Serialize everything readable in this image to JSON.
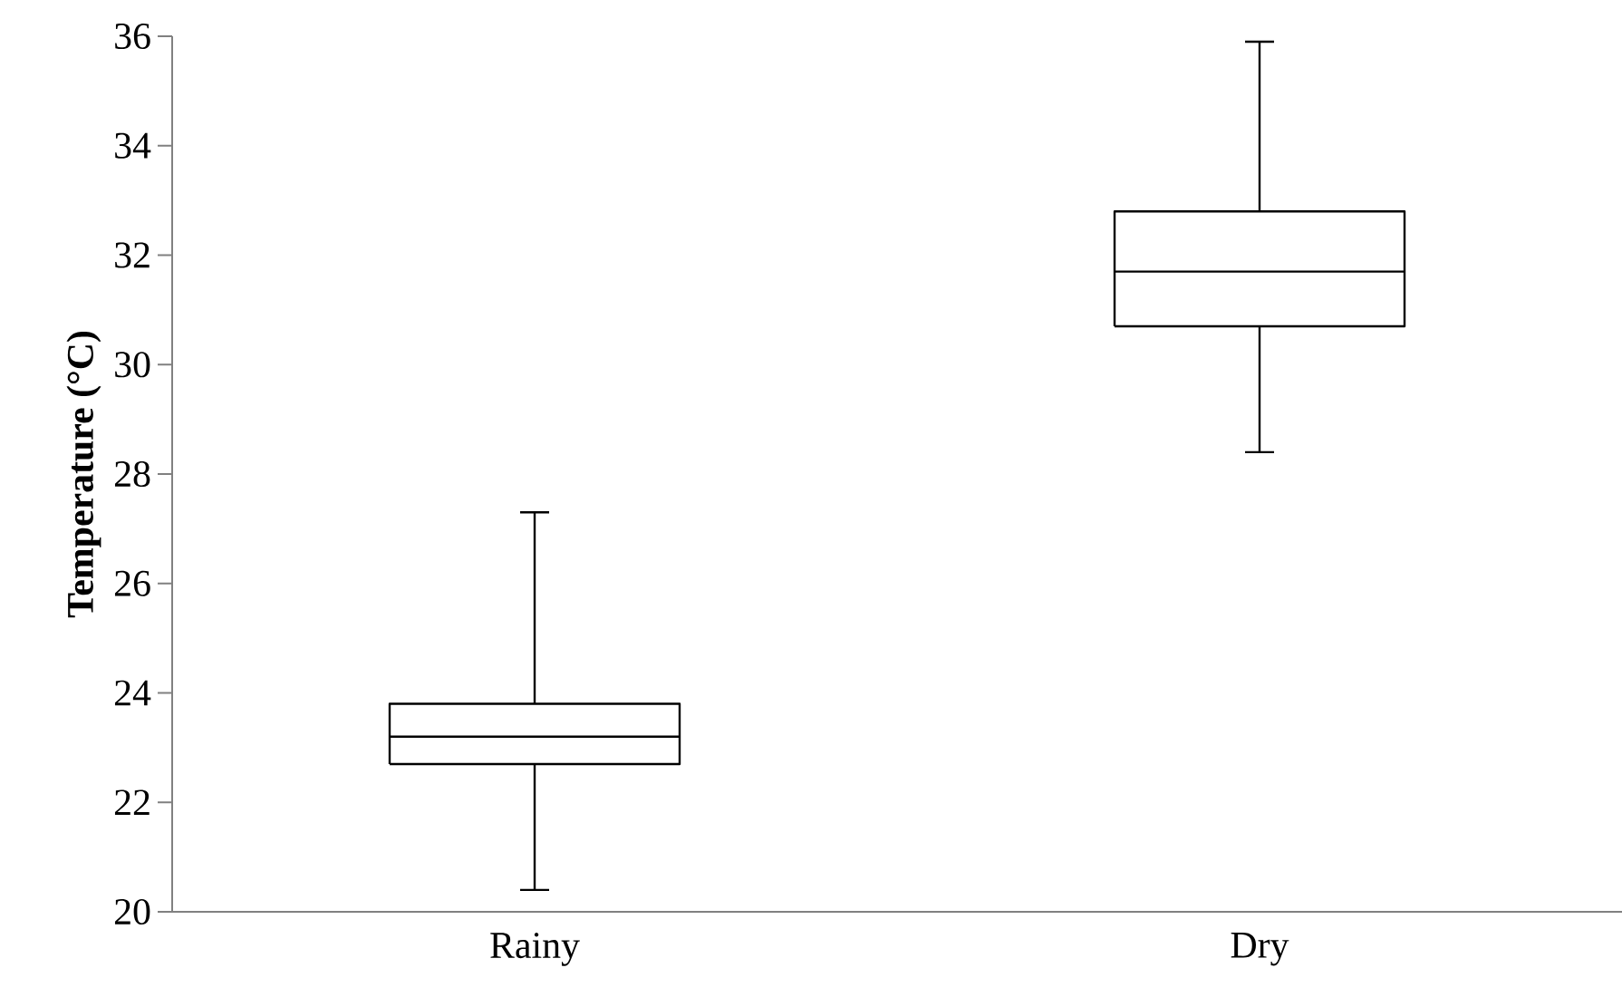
{
  "chart_data": {
    "type": "box",
    "ylabel": "Temperature (°C)",
    "categories": [
      "Rainy",
      "Dry"
    ],
    "boxes": [
      {
        "low": 20.4,
        "q1": 22.7,
        "median": 23.2,
        "q3": 23.8,
        "high": 27.3
      },
      {
        "low": 28.4,
        "q1": 30.7,
        "median": 31.7,
        "q3": 32.8,
        "high": 35.9
      }
    ],
    "ylim": [
      20,
      36
    ],
    "yticks": [
      20,
      22,
      24,
      26,
      28,
      30,
      32,
      34,
      36
    ],
    "grid": false
  }
}
